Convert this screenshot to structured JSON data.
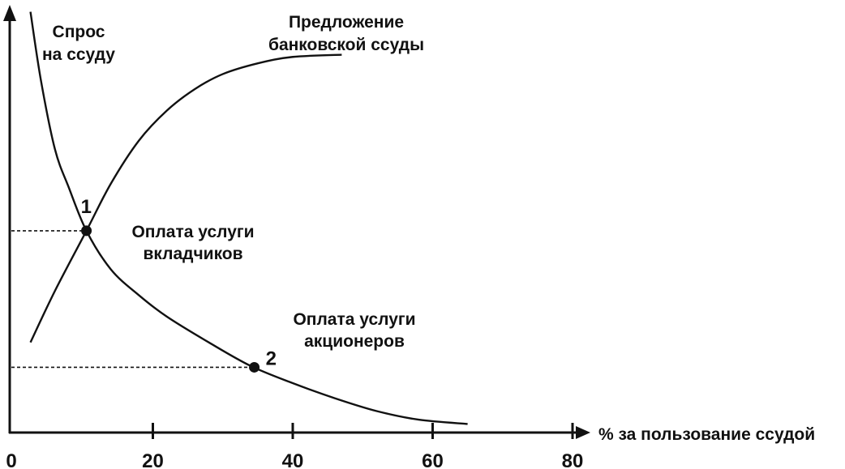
{
  "chart_data": {
    "type": "line",
    "x_title": "% за пользование ссудой",
    "x_ticks": [
      "0",
      "20",
      "40",
      "60",
      "80"
    ],
    "x_tick_values": [
      0,
      20,
      40,
      60,
      80
    ],
    "xlim": [
      0,
      80
    ],
    "ylim": [
      0,
      100
    ],
    "grid": false,
    "series": [
      {
        "name": "Спрос на ссуду",
        "name_lines": [
          "Спрос",
          "на ссуду"
        ],
        "points": [
          [
            2.5,
            98
          ],
          [
            4,
            82
          ],
          [
            6,
            66
          ],
          [
            8,
            57
          ],
          [
            10.5,
            47
          ],
          [
            14,
            38
          ],
          [
            18,
            32
          ],
          [
            22,
            27
          ],
          [
            28,
            21
          ],
          [
            34,
            15.5
          ],
          [
            40,
            11.5
          ],
          [
            46,
            8
          ],
          [
            52,
            5
          ],
          [
            58,
            3
          ],
          [
            65,
            2
          ]
        ]
      },
      {
        "name": "Предложение банковской ссуды",
        "name_lines": [
          "Предложение",
          "банковской ссуды"
        ],
        "points": [
          [
            2.5,
            21
          ],
          [
            6,
            33
          ],
          [
            10.5,
            47
          ],
          [
            14,
            58
          ],
          [
            18,
            68
          ],
          [
            22,
            75
          ],
          [
            26,
            80
          ],
          [
            30,
            83.5
          ],
          [
            35,
            86
          ],
          [
            40,
            87.5
          ],
          [
            47,
            88
          ]
        ]
      }
    ],
    "points": [
      {
        "label": "1",
        "x": 10.5,
        "y": 47,
        "annotation": [
          "Оплата услуги",
          "вкладчиков"
        ]
      },
      {
        "label": "2",
        "x": 34.5,
        "y": 15.2,
        "annotation": [
          "Оплата услуги",
          "акционеров"
        ]
      }
    ]
  }
}
